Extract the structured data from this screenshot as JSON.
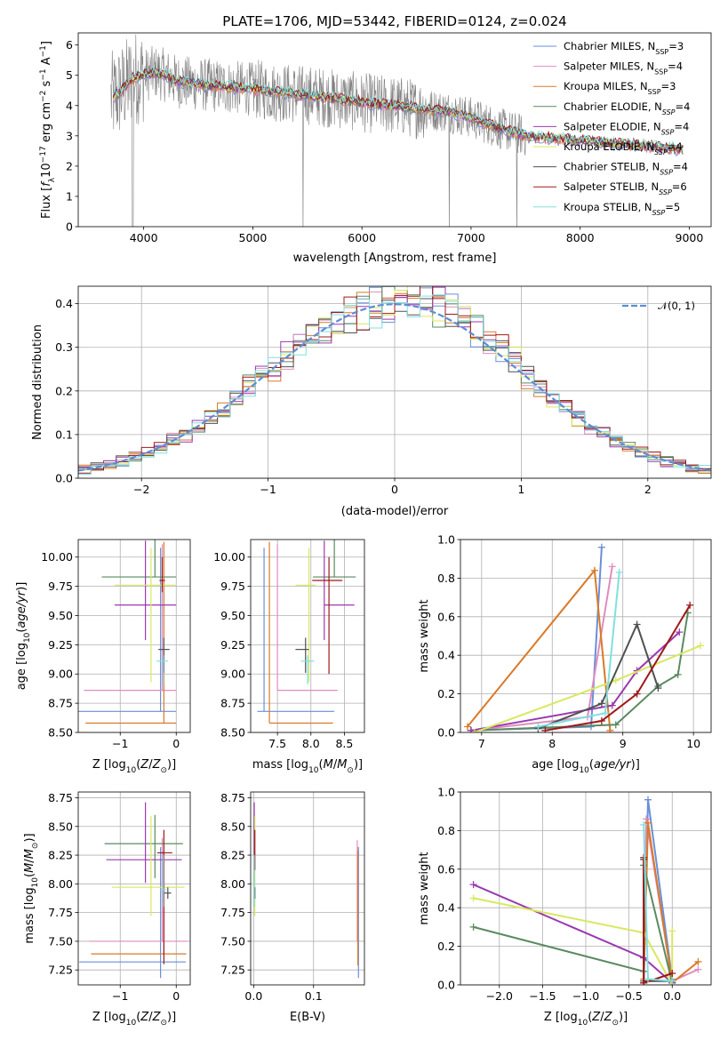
{
  "title": "PLATE=1706, MJD=53442, FIBERID=0124, z=0.024",
  "colors": {
    "chabrier_miles": "#6a8fd8",
    "salpeter_miles": "#e08cc0",
    "kroupa_miles": "#d87a28",
    "chabrier_elodie": "#5a8a60",
    "salpeter_elodie": "#9a3ab0",
    "kroupa_elodie": "#d8e860",
    "chabrier_stelib": "#505050",
    "salpeter_stelib": "#a01818",
    "kroupa_stelib": "#80e0e0",
    "data_spectrum": "#808080",
    "gaussian": "#5b8dd6"
  },
  "chart_data": [
    {
      "type": "line",
      "panel": "spectrum",
      "xlabel": "wavelength [Angstrom, rest frame]",
      "ylabel": "Flux [f_λ 10^-17 erg cm^-2 s^-1 A^-1]",
      "xlim": [
        3400,
        9200
      ],
      "ylim": [
        0,
        6.4
      ],
      "xticks": [
        4000,
        5000,
        6000,
        7000,
        8000,
        9000
      ],
      "yticks": [
        0,
        1,
        2,
        3,
        4,
        5,
        6
      ],
      "legend_position": "upper right",
      "legend": [
        {
          "name": "Chabrier MILES",
          "nssp": "3"
        },
        {
          "name": "Salpeter MILES",
          "nssp": "4"
        },
        {
          "name": "Kroupa MILES",
          "nssp": "3"
        },
        {
          "name": "Chabrier ELODIE",
          "nssp": "4"
        },
        {
          "name": "Salpeter ELODIE",
          "nssp": "4"
        },
        {
          "name": "Kroupa ELODIE",
          "nssp": "4"
        },
        {
          "name": "Chabrier STELIB",
          "nssp": "4"
        },
        {
          "name": "Salpeter STELIB",
          "nssp": "6"
        },
        {
          "name": "Kroupa STELIB",
          "nssp": "5"
        }
      ],
      "model_x": [
        3700,
        3800,
        3900,
        4000,
        4100,
        4200,
        4300,
        4500,
        4800,
        5000,
        5200,
        5500,
        5800,
        6000,
        6300,
        6500,
        6800,
        7000,
        7300,
        7500,
        7800,
        8000,
        8300,
        8500,
        8800,
        8950
      ],
      "model_y": [
        4.2,
        4.5,
        4.9,
        5.0,
        5.1,
        5.0,
        4.8,
        4.7,
        4.6,
        4.55,
        4.45,
        4.35,
        4.2,
        4.1,
        4.0,
        3.9,
        3.8,
        3.6,
        3.2,
        3.0,
        2.9,
        2.85,
        2.75,
        2.7,
        2.6,
        2.55
      ]
    },
    {
      "type": "histogram",
      "panel": "residuals",
      "xlabel": "(data-model)/error",
      "ylabel": "Normed distribution",
      "xlim": [
        -2.5,
        2.5
      ],
      "ylim": [
        0,
        0.44
      ],
      "xticks": [
        -2,
        -1,
        0,
        1,
        2
      ],
      "yticks": [
        0.0,
        0.1,
        0.2,
        0.3,
        0.4
      ],
      "legend": [
        "𝒩(0, 1)"
      ],
      "bin_width": 0.1,
      "gaussian": {
        "mu": 0,
        "sigma": 1
      }
    },
    {
      "type": "scatter",
      "panel": "age_vs_Z",
      "xlabel": "Z [log10(Z/Z⊙)]",
      "ylabel": "age [log10(age/yr)]",
      "xlim": [
        -1.75,
        0.25
      ],
      "ylim": [
        8.5,
        10.15
      ],
      "xticks": [
        -1,
        0
      ],
      "yticks": [
        8.5,
        8.75,
        9.0,
        9.25,
        9.5,
        9.75,
        10.0
      ],
      "points": [
        {
          "x": -0.28,
          "y": 8.68,
          "xe": [
            1.55,
            0.28
          ],
          "ye": [
            0.0,
            1.4
          ],
          "c": "chabrier_miles"
        },
        {
          "x": -0.25,
          "y": 8.86,
          "xe": [
            1.4,
            0.25
          ],
          "ye": [
            0.0,
            1.25
          ],
          "c": "salpeter_miles"
        },
        {
          "x": -0.22,
          "y": 8.58,
          "xe": [
            1.4,
            0.22
          ],
          "ye": [
            0.0,
            1.55
          ],
          "c": "kroupa_miles"
        },
        {
          "x": -0.38,
          "y": 9.83,
          "xe": [
            0.95,
            0.38
          ],
          "ye": [
            0.0,
            0.32
          ],
          "c": "chabrier_elodie"
        },
        {
          "x": -0.55,
          "y": 9.59,
          "xe": [
            0.55,
            0.55
          ],
          "ye": [
            0.3,
            0.55
          ],
          "c": "salpeter_elodie"
        },
        {
          "x": -0.45,
          "y": 9.76,
          "xe": [
            0.65,
            0.45
          ],
          "ye": [
            0.83,
            0.32
          ],
          "c": "kroupa_elodie"
        },
        {
          "x": -0.22,
          "y": 9.21,
          "xe": [
            0.1,
            0.1
          ],
          "ye": [
            0.2,
            0.1
          ],
          "c": "chabrier_stelib"
        },
        {
          "x": -0.25,
          "y": 9.8,
          "xe": [
            0.05,
            0.05
          ],
          "ye": [
            0.1,
            0.2
          ],
          "c": "salpeter_stelib"
        },
        {
          "x": -0.23,
          "y": 9.11,
          "xe": [
            0.12,
            0.08
          ],
          "ye": [
            0.2,
            0.05
          ],
          "c": "kroupa_stelib"
        }
      ]
    },
    {
      "type": "scatter",
      "panel": "age_vs_mass",
      "xlabel": "mass [log10(M/M⊙)]",
      "ylabel": "",
      "xlim": [
        7.1,
        8.8
      ],
      "ylim": [
        8.5,
        10.15
      ],
      "xticks": [
        7.5,
        8.0,
        8.5
      ],
      "yticks": [
        8.5,
        8.75,
        9.0,
        9.25,
        9.5,
        9.75,
        10.0
      ],
      "points": [
        {
          "x": 7.3,
          "y": 8.68,
          "xe": [
            0.1,
            1.05
          ],
          "ye": [
            0.0,
            1.4
          ],
          "c": "chabrier_miles"
        },
        {
          "x": 7.5,
          "y": 8.86,
          "xe": [
            0.0,
            0.9
          ],
          "ye": [
            0.0,
            1.25
          ],
          "c": "salpeter_miles"
        },
        {
          "x": 7.38,
          "y": 8.58,
          "xe": [
            0.0,
            0.95
          ],
          "ye": [
            0.0,
            1.55
          ],
          "c": "kroupa_miles"
        },
        {
          "x": 8.35,
          "y": 9.83,
          "xe": [
            0.32,
            0.32
          ],
          "ye": [
            0.0,
            0.32
          ],
          "c": "chabrier_elodie"
        },
        {
          "x": 8.2,
          "y": 9.59,
          "xe": [
            0.0,
            0.45
          ],
          "ye": [
            0.3,
            0.55
          ],
          "c": "salpeter_elodie"
        },
        {
          "x": 7.97,
          "y": 9.76,
          "xe": [
            0.2,
            0.1
          ],
          "ye": [
            0.83,
            0.32
          ],
          "c": "kroupa_elodie"
        },
        {
          "x": 7.92,
          "y": 9.21,
          "xe": [
            0.15,
            0.05
          ],
          "ye": [
            0.2,
            0.1
          ],
          "c": "chabrier_stelib"
        },
        {
          "x": 8.27,
          "y": 9.8,
          "xe": [
            0.25,
            0.2
          ],
          "ye": [
            0.8,
            0.2
          ],
          "c": "salpeter_stelib"
        },
        {
          "x": 7.95,
          "y": 9.11,
          "xe": [
            0.1,
            0.1
          ],
          "ye": [
            0.2,
            0.05
          ],
          "c": "kroupa_stelib"
        }
      ]
    },
    {
      "type": "line",
      "panel": "mass_weight_vs_age",
      "xlabel": "age [log10(age/yr)]",
      "ylabel": "mass weight",
      "xlim": [
        6.7,
        10.25
      ],
      "ylim": [
        0,
        1.0
      ],
      "xticks": [
        7,
        8,
        9,
        10
      ],
      "yticks": [
        0.0,
        0.2,
        0.4,
        0.6,
        0.8,
        1.0
      ],
      "series": [
        {
          "c": "chabrier_miles",
          "x": [
            6.85,
            8.55,
            8.7
          ],
          "y": [
            0.01,
            0.03,
            0.96
          ]
        },
        {
          "c": "salpeter_miles",
          "x": [
            6.85,
            8.5,
            8.85
          ],
          "y": [
            0.01,
            0.08,
            0.86
          ]
        },
        {
          "c": "kroupa_miles",
          "x": [
            6.8,
            8.6,
            8.82
          ],
          "y": [
            0.03,
            0.84,
            0.01
          ]
        },
        {
          "c": "chabrier_elodie",
          "x": [
            6.85,
            8.9,
            9.5,
            9.78,
            9.92
          ],
          "y": [
            0.01,
            0.04,
            0.24,
            0.3,
            0.62
          ]
        },
        {
          "c": "salpeter_elodie",
          "x": [
            6.85,
            8.85,
            9.2,
            9.8
          ],
          "y": [
            0.01,
            0.14,
            0.32,
            0.52
          ]
        },
        {
          "c": "kroupa_elodie",
          "x": [
            6.9,
            8.9,
            10.1
          ],
          "y": [
            0.0,
            0.27,
            0.45
          ]
        },
        {
          "c": "chabrier_stelib",
          "x": [
            7.8,
            8.7,
            9.2,
            9.5
          ],
          "y": [
            0.02,
            0.15,
            0.56,
            0.23
          ]
        },
        {
          "c": "salpeter_stelib",
          "x": [
            7.9,
            8.7,
            9.2,
            9.95
          ],
          "y": [
            0.01,
            0.06,
            0.2,
            0.66
          ]
        },
        {
          "c": "kroupa_stelib",
          "x": [
            7.8,
            8.75,
            8.95
          ],
          "y": [
            0.03,
            0.1,
            0.83
          ]
        }
      ]
    },
    {
      "type": "scatter",
      "panel": "mass_vs_Z",
      "xlabel": "Z [log10(Z/Z⊙)]",
      "ylabel": "mass [log10(M/M⊙)]",
      "xlim": [
        -1.75,
        0.25
      ],
      "ylim": [
        7.12,
        8.8
      ],
      "xticks": [
        -1,
        0
      ],
      "yticks": [
        7.25,
        7.5,
        7.75,
        8.0,
        8.25,
        8.5,
        8.75
      ],
      "points": [
        {
          "x": -0.28,
          "y": 7.32,
          "xe": [
            1.45,
            0.45
          ],
          "ye": [
            0.14,
            1.0
          ],
          "c": "chabrier_miles"
        },
        {
          "x": -0.25,
          "y": 7.5,
          "xe": [
            1.3,
            0.45
          ],
          "ye": [
            0.0,
            0.9
          ],
          "c": "salpeter_miles"
        },
        {
          "x": -0.22,
          "y": 7.39,
          "xe": [
            1.3,
            0.4
          ],
          "ye": [
            0.0,
            0.9
          ],
          "c": "kroupa_miles"
        },
        {
          "x": -0.38,
          "y": 8.35,
          "xe": [
            0.9,
            0.5
          ],
          "ye": [
            0.3,
            0.25
          ],
          "c": "chabrier_elodie"
        },
        {
          "x": -0.55,
          "y": 8.21,
          "xe": [
            0.7,
            0.65
          ],
          "ye": [
            0.2,
            0.5
          ],
          "c": "salpeter_elodie"
        },
        {
          "x": -0.45,
          "y": 7.97,
          "xe": [
            0.7,
            0.6
          ],
          "ye": [
            0.25,
            0.62
          ],
          "c": "kroupa_elodie"
        },
        {
          "x": -0.15,
          "y": 7.92,
          "xe": [
            0.06,
            0.06
          ],
          "ye": [
            0.05,
            0.05
          ],
          "c": "chabrier_stelib"
        },
        {
          "x": -0.22,
          "y": 8.27,
          "xe": [
            0.12,
            0.15
          ],
          "ye": [
            0.97,
            0.2
          ],
          "c": "salpeter_stelib"
        },
        {
          "x": -0.23,
          "y": 7.95,
          "xe": [
            0.05,
            0.05
          ],
          "ye": [
            0.15,
            0.3
          ],
          "c": "kroupa_stelib"
        }
      ]
    },
    {
      "type": "scatter",
      "panel": "mass_vs_ebv",
      "xlabel": "E(B-V)",
      "ylabel": "",
      "xlim": [
        -0.005,
        0.185
      ],
      "ylim": [
        7.12,
        8.8
      ],
      "xticks": [
        0.0,
        0.1
      ],
      "yticks": [
        7.25,
        7.5,
        7.75,
        8.0,
        8.25,
        8.5,
        8.75
      ],
      "points": [
        {
          "x": 0.175,
          "y": 7.32,
          "xe": [
            0,
            0
          ],
          "ye": [
            0.14,
            1.0
          ],
          "c": "chabrier_miles"
        },
        {
          "x": 0.173,
          "y": 7.5,
          "xe": [
            0,
            0
          ],
          "ye": [
            0.0,
            0.88
          ],
          "c": "salpeter_miles"
        },
        {
          "x": 0.174,
          "y": 7.39,
          "xe": [
            0,
            0
          ],
          "ye": [
            0.1,
            0.9
          ],
          "c": "kroupa_miles"
        },
        {
          "x": 0.001,
          "y": 8.35,
          "xe": [
            0,
            0
          ],
          "ye": [
            0.3,
            0.25
          ],
          "c": "chabrier_elodie"
        },
        {
          "x": 0.001,
          "y": 8.21,
          "xe": [
            0,
            0
          ],
          "ye": [
            0.2,
            0.5
          ],
          "c": "salpeter_elodie"
        },
        {
          "x": 0.002,
          "y": 7.97,
          "xe": [
            0,
            0
          ],
          "ye": [
            0.25,
            0.62
          ],
          "c": "kroupa_elodie"
        },
        {
          "x": 0.002,
          "y": 7.92,
          "xe": [
            0,
            0
          ],
          "ye": [
            0.05,
            0.05
          ],
          "c": "chabrier_stelib"
        },
        {
          "x": 0.002,
          "y": 8.27,
          "xe": [
            0,
            0
          ],
          "ye": [
            0.15,
            0.2
          ],
          "c": "salpeter_stelib"
        },
        {
          "x": 0.001,
          "y": 7.95,
          "xe": [
            0,
            0
          ],
          "ye": [
            0.15,
            0.3
          ],
          "c": "kroupa_stelib"
        }
      ]
    },
    {
      "type": "line",
      "panel": "mass_weight_vs_Z",
      "xlabel": "Z [log10(Z/Z⊙)]",
      "ylabel": "mass weight",
      "xlim": [
        -2.45,
        0.45
      ],
      "ylim": [
        0,
        1.0
      ],
      "xticks": [
        -2.0,
        -1.5,
        -1.0,
        -0.5,
        0.0
      ],
      "yticks": [
        0.0,
        0.2,
        0.4,
        0.6,
        0.8,
        1.0
      ],
      "series": [
        {
          "c": "chabrier_miles",
          "x": [
            -0.33,
            -0.28,
            0.0
          ],
          "y": [
            0.01,
            0.96,
            0.03
          ]
        },
        {
          "c": "salpeter_miles",
          "x": [
            -0.33,
            -0.3,
            0.0,
            0.3
          ],
          "y": [
            0.01,
            0.86,
            0.02,
            0.08
          ]
        },
        {
          "c": "kroupa_miles",
          "x": [
            -0.33,
            -0.28,
            0.0,
            0.3
          ],
          "y": [
            0.03,
            0.84,
            0.01,
            0.12
          ]
        },
        {
          "c": "chabrier_elodie",
          "x": [
            -2.3,
            -0.33,
            -0.33,
            0.0
          ],
          "y": [
            0.3,
            0.07,
            0.62,
            0.01
          ]
        },
        {
          "c": "salpeter_elodie",
          "x": [
            -2.3,
            -0.33,
            0.0
          ],
          "y": [
            0.52,
            0.14,
            0.01
          ]
        },
        {
          "c": "kroupa_elodie",
          "x": [
            -2.3,
            -0.33,
            0.0,
            0.0
          ],
          "y": [
            0.45,
            0.27,
            0.0,
            0.28
          ]
        },
        {
          "c": "chabrier_stelib",
          "x": [
            -0.33,
            -0.33,
            0.0
          ],
          "y": [
            0.65,
            0.02,
            0.02
          ]
        },
        {
          "c": "salpeter_stelib",
          "x": [
            -0.33,
            -0.33,
            0.0
          ],
          "y": [
            0.66,
            0.01,
            0.06
          ]
        },
        {
          "c": "kroupa_stelib",
          "x": [
            -0.33,
            -0.28,
            0.0
          ],
          "y": [
            0.83,
            0.03,
            0.02
          ]
        }
      ]
    }
  ]
}
